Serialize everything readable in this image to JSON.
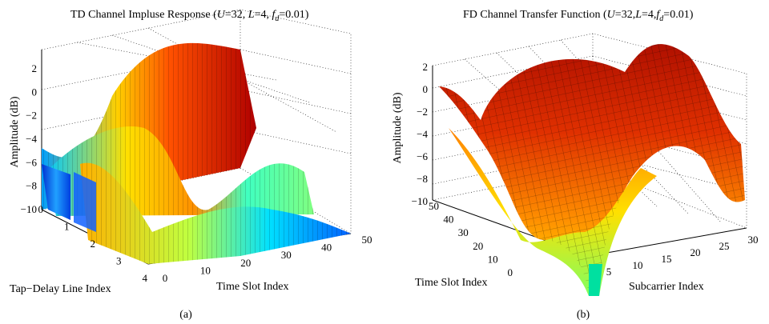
{
  "chart_data": [
    {
      "type": "surface",
      "title_main": "TD Channel Impluse Response (",
      "title_params": {
        "u_name": "U",
        "u_value": "=32, ",
        "l_name": "L",
        "l_value": "=4, ",
        "f_name": "f",
        "f_sub": "d",
        "f_value": "=0.01)"
      },
      "xlabel": "Time Slot Index",
      "ylabel": "Tap−Delay Line Index",
      "zlabel": "Amplitude (dB)",
      "x_ticks": [
        "0",
        "10",
        "20",
        "30",
        "40",
        "50"
      ],
      "y_ticks": [
        "0",
        "1",
        "2",
        "3",
        "4"
      ],
      "z_ticks": [
        "−10",
        "−8",
        "−6",
        "−4",
        "−2",
        "0",
        "2"
      ],
      "xlim": [
        0,
        50
      ],
      "ylim": [
        0,
        4
      ],
      "zlim": [
        -10,
        2
      ],
      "grid": true,
      "colormap": "jet",
      "caption": "(a)",
      "approx_tap_profiles_db": [
        {
          "tap": 0,
          "time_slot": [
            0,
            10,
            20,
            30,
            40,
            50
          ],
          "amplitude": [
            -5,
            -6.5,
            -8.5,
            -7.5,
            -6,
            -5
          ]
        },
        {
          "tap": 1,
          "time_slot": [
            0,
            10,
            20,
            30,
            40,
            50
          ],
          "amplitude": [
            -6,
            -2,
            0.5,
            1.5,
            1,
            1
          ]
        },
        {
          "tap": 2,
          "time_slot": [
            0,
            10,
            20,
            30,
            40,
            50
          ],
          "amplitude": [
            -5.5,
            -3,
            -5,
            -8,
            -3,
            -10
          ]
        },
        {
          "tap": 3,
          "time_slot": [
            0,
            10,
            20,
            30,
            40,
            50
          ],
          "amplitude": [
            -10,
            -9,
            -8,
            -7,
            -8,
            -10
          ]
        }
      ]
    },
    {
      "type": "surface",
      "title_main": "FD Channel Transfer Function (",
      "title_params": {
        "u_name": "U",
        "u_value": "=32,",
        "l_name": "L",
        "l_value": "=4,",
        "f_name": "f",
        "f_sub": "d",
        "f_value": "=0.01)"
      },
      "xlabel": "Subcarrier Index",
      "ylabel": "Time Slot Index",
      "zlabel": "Amplitude (dB)",
      "x_ticks": [
        "5",
        "10",
        "15",
        "20",
        "25",
        "30"
      ],
      "y_ticks": [
        "0",
        "10",
        "20",
        "30",
        "40",
        "50"
      ],
      "z_ticks": [
        "−10",
        "−8",
        "−6",
        "−4",
        "−2",
        "0",
        "2"
      ],
      "xlim": [
        1,
        32
      ],
      "ylim": [
        0,
        50
      ],
      "zlim": [
        -10,
        2
      ],
      "grid": true,
      "colormap": "autumn",
      "caption": "(b)"
    }
  ]
}
